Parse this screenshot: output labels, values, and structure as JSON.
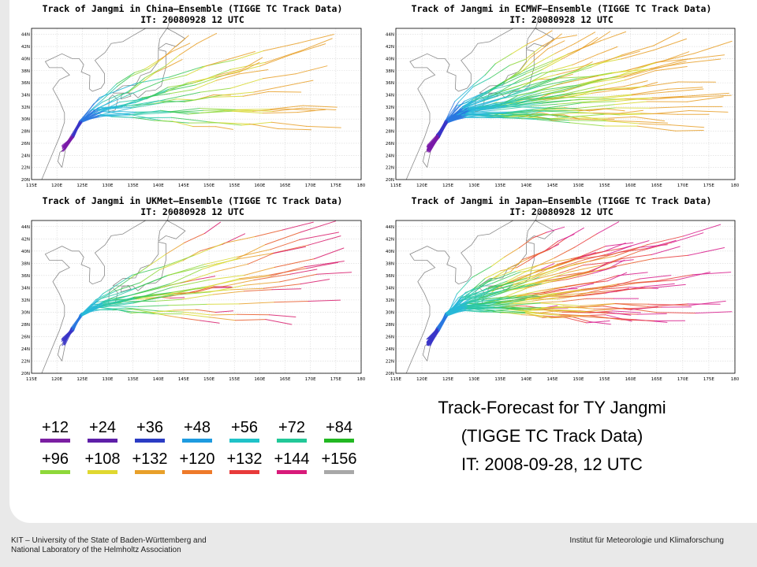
{
  "panels": [
    {
      "title": "Track of Jangmi in China–Ensemble (TIGGE TC Track Data)",
      "subtitle": "IT: 20080928 12 UTC",
      "palette": [
        "#7a1aa8",
        "#3a35c8",
        "#2a78e0",
        "#27b8d8",
        "#2cc8a8",
        "#3cc85a",
        "#8ed83a",
        "#d8d830",
        "#e8a02a"
      ]
    },
    {
      "title": "Track of Jangmi in ECMWF–Ensemble (TIGGE TC Track Data)",
      "subtitle": "IT: 20080928 12 UTC",
      "palette": [
        "#7a1aa8",
        "#3a35c8",
        "#2a78e0",
        "#27b8d8",
        "#2cc8a8",
        "#3cc85a",
        "#8ed83a",
        "#d8d830",
        "#e8a02a"
      ]
    },
    {
      "title": "Track of Jangmi in UKMet–Ensemble (TIGGE TC Track Data)",
      "subtitle": "IT: 20080928 12 UTC",
      "palette": [
        "#7a1aa8",
        "#3a35c8",
        "#2a78e0",
        "#27b8d8",
        "#2cc8a8",
        "#3cc85a",
        "#8ed83a",
        "#d8d830",
        "#e8a02a",
        "#e85a2a",
        "#d81a6a"
      ]
    },
    {
      "title": "Track of Jangmi in Japan–Ensemble (TIGGE TC Track Data)",
      "subtitle": "IT: 20080928 12 UTC",
      "palette": [
        "#7a1aa8",
        "#3a35c8",
        "#2a78e0",
        "#27b8d8",
        "#2cc8a8",
        "#3cc85a",
        "#8ed83a",
        "#d8d830",
        "#e8a02a",
        "#e85a2a",
        "#e83a3a",
        "#d81a8a"
      ]
    }
  ],
  "axes": {
    "lon_labels": [
      "115E",
      "120E",
      "125E",
      "130E",
      "135E",
      "140E",
      "145E",
      "150E",
      "155E",
      "160E",
      "165E",
      "170E",
      "175E",
      "180"
    ],
    "lat_labels": [
      "20N",
      "22N",
      "24N",
      "26N",
      "28N",
      "30N",
      "32N",
      "34N",
      "36N",
      "38N",
      "40N",
      "42N",
      "44N"
    ],
    "lon_range": [
      115,
      180
    ],
    "lat_range": [
      20,
      45
    ]
  },
  "legend": {
    "row1": [
      {
        "label": "+12",
        "color": "#7b1fa2"
      },
      {
        "label": "+24",
        "color": "#5e1fa8"
      },
      {
        "label": "+36",
        "color": "#2b3cc4"
      },
      {
        "label": "+48",
        "color": "#1e9be0"
      },
      {
        "label": "+56",
        "color": "#1fc2c8"
      },
      {
        "label": "+72",
        "color": "#22c898"
      },
      {
        "label": "+84",
        "color": "#22b822"
      }
    ],
    "row2": [
      {
        "label": "+96",
        "color": "#8ed83a"
      },
      {
        "label": "+108",
        "color": "#e0d830"
      },
      {
        "label": "+132",
        "color": "#e8a02a"
      },
      {
        "label": "+120",
        "color": "#ee7a2a"
      },
      {
        "label": "+132",
        "color": "#e83a3a"
      },
      {
        "label": "+144",
        "color": "#d81a7a"
      },
      {
        "label": "+156",
        "color": "#a8a8a8"
      }
    ]
  },
  "title_block": {
    "line1": "Track-Forecast for TY Jangmi",
    "line2": "(TIGGE TC Track Data)",
    "line3": "IT: 2008-09-28, 12 UTC"
  },
  "footer": {
    "left_line1": "KIT – University of the State of Baden-Württemberg and",
    "left_line2": "National Laboratory of the Helmholtz Association",
    "right": "Institut für Meteorologie und Klimaforschung"
  }
}
